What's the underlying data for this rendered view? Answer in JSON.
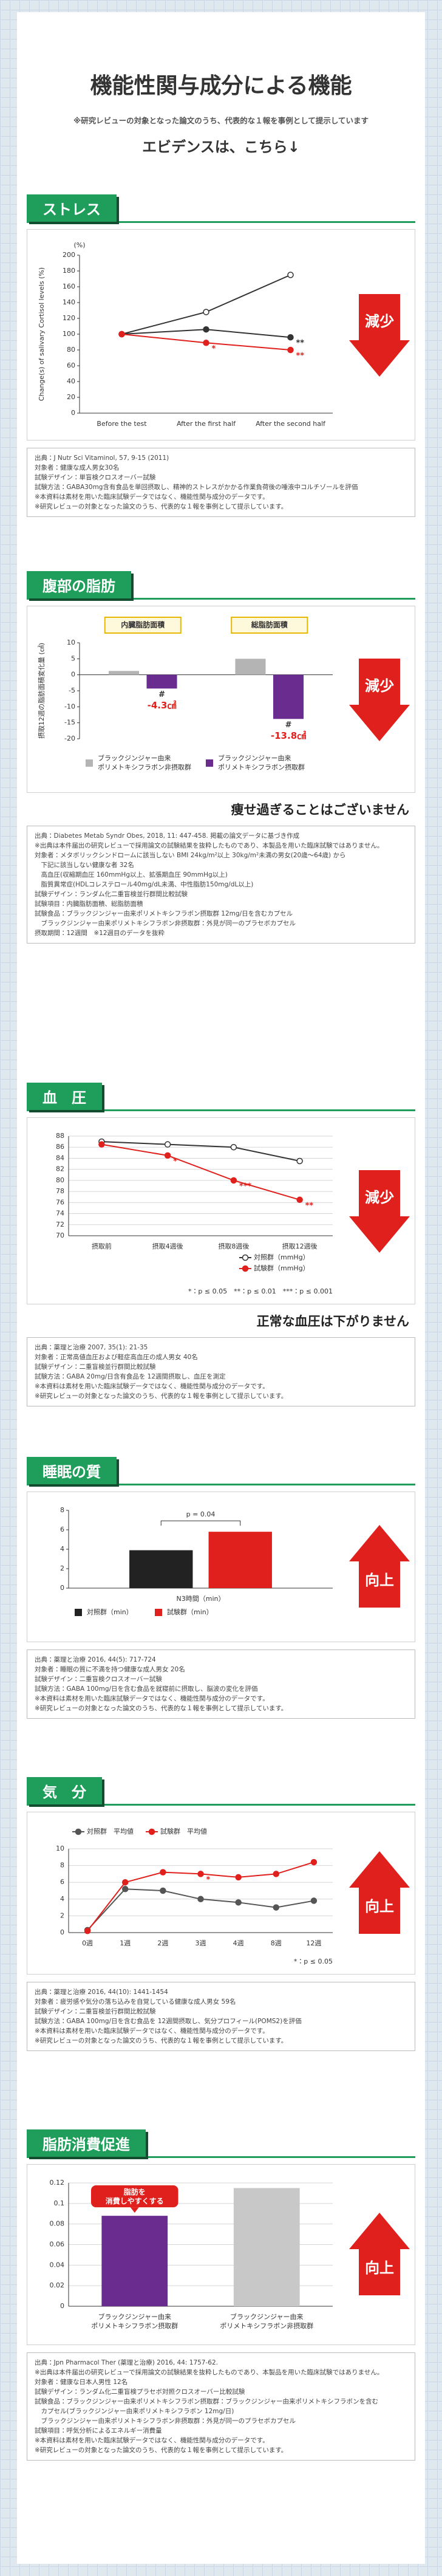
{
  "header": {
    "title": "機能性関与成分による機能",
    "note": "※研究レビューの対象となった論文のうち、代表的な１報を事例として提示しています",
    "lead": "エビデンスは、こちら↓"
  },
  "sections": [
    {
      "title": "ストレス",
      "badge": "減少",
      "arrow": "down",
      "notes": [
        "出典：J Nutr Sci Vitaminol, 57, 9-15 (2011)",
        "対象者：健康な成人男女30名",
        "試験デザイン：単盲検クロスオーバー試験",
        "試験方法：GABA30mg含有食品を単回摂取し、精神的ストレスがかかる作業負荷後の唾液中コルチゾールを評価",
        "※本資料は素材を用いた臨床試験データではなく、機能性関与成分のデータです。",
        "※研究レビューの対象となった論文のうち、代表的な１報を事例として提示しています。"
      ]
    },
    {
      "title": "腹部の脂肪",
      "badge": "減少",
      "arrow": "down",
      "caption": "痩せ過ぎることはございません",
      "notes": [
        "出典：Diabetes Metab Syndr Obes, 2018, 11: 447-458. 掲載の論文データに基づき作成",
        "※出典は本件届出の研究レビューで採用論文の試験結果を抜粋したものであり、本製品を用いた臨床試験ではありません。",
        "対象者：メタボリックシンドロームに該当しない BMI 24kg/m²以上 30kg/m²未満の男女(20歳～64歳) から",
        "　下記に該当しない健康な者 32名",
        "　高血圧(収縮期血圧 160mmHg以上、拡張期血圧 90mmHg以上)",
        "　脂質異常症(HDLコレステロール40mg/dL未満、中性脂肪150mg/dL以上)",
        "試験デザイン：ランダム化二重盲検並行群間比較試験",
        "試験項目：内臓脂肪面積、総脂肪面積",
        "試験食品：ブラックジンジャー由来ポリメトキシフラボン摂取群 12mg/日を含むカプセル",
        "　ブラックジンジャー由来ポリメトキシフラボン非摂取群：外見が同一のプラセボカプセル",
        "摂取期間：12週間　※12週目のデータを抜粋"
      ]
    },
    {
      "title": "血　圧",
      "badge": "減少",
      "arrow": "down",
      "caption": "正常な血圧は下がりません",
      "notes": [
        "出典：薬理と治療 2007, 35(1): 21-35",
        "対象者：正常高値血圧および軽症高血圧の成人男女 40名",
        "試験デザイン：二重盲検並行群間比較試験",
        "試験方法：GABA 20mg/日含有食品を 12週間摂取し、血圧を測定",
        "※本資料は素材を用いた臨床試験データではなく、機能性関与成分のデータです。",
        "※研究レビューの対象となった論文のうち、代表的な１報を事例として提示しています。"
      ]
    },
    {
      "title": "睡眠の質",
      "badge": "向上",
      "arrow": "up",
      "notes": [
        "出典：薬理と治療 2016, 44(5): 717-724",
        "対象者：睡眠の質に不満を持つ健康な成人男女 20名",
        "試験デザイン：二重盲検クロスオーバー試験",
        "試験方法：GABA 100mg/日を含む食品を就寝前に摂取し、脳波の変化を評価",
        "※本資料は素材を用いた臨床試験データではなく、機能性関与成分のデータです。",
        "※研究レビューの対象となった論文のうち、代表的な１報を事例として提示しています。"
      ]
    },
    {
      "title": "気　分",
      "badge": "向上",
      "arrow": "up",
      "notes": [
        "出典：薬理と治療 2016, 44(10): 1441-1454",
        "対象者：疲労感や気分の落ち込みを自覚している健康な成人男女 59名",
        "試験デザイン：二重盲検並行群間比較試験",
        "試験方法：GABA 100mg/日を含む食品を 12週間摂取し、気分プロフィール(POMS2)を評価",
        "※本資料は素材を用いた臨床試験データではなく、機能性関与成分のデータです。",
        "※研究レビューの対象となった論文のうち、代表的な１報を事例として提示しています。"
      ]
    },
    {
      "title": "脂肪消費促進",
      "badge": "向上",
      "arrow": "up",
      "notes": [
        "出典：Jpn Pharmacol Ther (薬理と治療) 2016, 44: 1757-62.",
        "※出典は本件届出の研究レビューで採用論文の試験結果を抜粋したものであり、本製品を用いた臨床試験ではありません。",
        "対象者：健康な日本人男性 12名",
        "試験デザイン：ランダム化二重盲検プラセボ対照クロスオーバー比較試験",
        "試験食品：ブラックジンジャー由来ポリメトキシフラボン摂取群：ブラックジンジャー由来ポリメトキシフラボンを含む",
        "　カプセル(ブラックジンジャー由来ポリメトキシフラボン 12mg/日)",
        "　ブラックジンジャー由来ポリメトキシフラボン非摂取群：外見が同一のプラセボカプセル",
        "試験項目：呼気分析によるエネルギー消費量",
        "※本資料は素材を用いた臨床試験データではなく、機能性関与成分のデータです。",
        "※研究レビューの対象となった論文のうち、代表的な１報を事例として提示しています。"
      ]
    }
  ],
  "chart_data": [
    {
      "type": "line",
      "ylabel": "Change(s) of salivary Cortisol levels (%)",
      "yunit": "(%)",
      "categories": [
        "Before the test",
        "After the first half",
        "After the second half"
      ],
      "series": [
        {
          "color": "#333333",
          "marker": "open-circle",
          "values": [
            100,
            128,
            175
          ]
        },
        {
          "color": "#333333",
          "marker": "circle",
          "values": [
            100,
            106,
            96
          ],
          "annotations": [
            null,
            null,
            "**"
          ]
        },
        {
          "color": "#e0201c",
          "marker": "circle",
          "values": [
            100,
            89,
            80
          ],
          "annotations": [
            null,
            "*",
            "**"
          ]
        }
      ],
      "ylim": [
        0,
        200
      ],
      "yticks": [
        0,
        20,
        40,
        60,
        80,
        100,
        120,
        140,
        160,
        180,
        200
      ],
      "grid": false
    },
    {
      "type": "bar",
      "ylabel": "摂取12週の脂肪面積変化量 (㎠)",
      "categories": [
        "内臓脂肪面積",
        "総脂肪面積"
      ],
      "category_box_color": "#e8b800",
      "series": [
        {
          "name": [
            "ブラックジンジャー由来",
            "ポリメトキシフラボン非摂取群"
          ],
          "color": "#b4b4b4",
          "values": [
            1.2,
            5.0
          ]
        },
        {
          "name": [
            "ブラックジンジャー由来",
            "ポリメトキシフラボン摂取群"
          ],
          "color": "#6a2c8e",
          "values": [
            -4.3,
            -13.8
          ],
          "value_labels": [
            "-4.3㎠",
            "-13.8㎠"
          ],
          "annotations": [
            "#",
            "#"
          ]
        }
      ],
      "ylim": [
        -20,
        10
      ],
      "yticks": [
        -20,
        -15,
        -10,
        -5,
        0,
        5,
        10
      ],
      "grid": false,
      "legend": "bottom"
    },
    {
      "type": "line",
      "categories": [
        "摂取前",
        "摂取4週後",
        "摂取8週後",
        "摂取12週後"
      ],
      "series": [
        {
          "name": "対照群（mmHg）",
          "color": "#333333",
          "marker": "open-circle",
          "values": [
            87,
            86.5,
            86,
            83.5
          ]
        },
        {
          "name": "試験群（mmHg）",
          "color": "#e0201c",
          "marker": "circle",
          "values": [
            86.5,
            84.5,
            80,
            76.5
          ],
          "annotations": [
            null,
            "*",
            "***",
            "**"
          ]
        }
      ],
      "ylim": [
        70,
        88
      ],
      "yticks": [
        70,
        72,
        74,
        76,
        78,
        80,
        82,
        84,
        86,
        88
      ],
      "grid": true,
      "legend": "bottom-right",
      "footnote": "*：p ≤ 0.05　**：p ≤ 0.01　***：p ≤ 0.001"
    },
    {
      "type": "bar",
      "categories": [
        "N3時間（min）"
      ],
      "series": [
        {
          "name": "対照群（min）",
          "color": "#222222",
          "values": [
            3.9
          ]
        },
        {
          "name": "試験群（min）",
          "color": "#e0201c",
          "values": [
            5.8
          ]
        }
      ],
      "annotation": "p = 0.04",
      "ylim": [
        0,
        8
      ],
      "yticks": [
        0,
        2,
        4,
        6,
        8
      ],
      "grid": false,
      "legend": "bottom"
    },
    {
      "type": "line",
      "categories": [
        "0週",
        "1週",
        "2週",
        "3週",
        "4週",
        "8週",
        "12週"
      ],
      "series": [
        {
          "name": "対照群　平均値",
          "color": "#555555",
          "marker": "circle",
          "values": [
            0.3,
            5.2,
            5.0,
            4.0,
            3.6,
            3.0,
            3.8
          ]
        },
        {
          "name": "試験群　平均値",
          "color": "#e0201c",
          "marker": "circle",
          "values": [
            0.2,
            6.0,
            7.2,
            7.0,
            6.6,
            7.0,
            8.4
          ],
          "annotations": [
            null,
            null,
            null,
            "*",
            null,
            null,
            null
          ]
        }
      ],
      "ylim": [
        0,
        10
      ],
      "yticks": [
        0,
        2,
        4,
        6,
        8,
        10
      ],
      "grid": true,
      "legend": "top",
      "footnote": "*：p ≤ 0.05"
    },
    {
      "type": "bar",
      "categories": [
        [
          "ブラックジンジャー由来",
          "ポリメトキシフラボン摂取群"
        ],
        [
          "ブラックジンジャー由来",
          "ポリメトキシフラボン非摂取群"
        ]
      ],
      "values": [
        0.088,
        0.115
      ],
      "colors": [
        "#6a2c8e",
        "#c8c8c8"
      ],
      "callout": [
        "脂肪を",
        "消費しやすくする"
      ],
      "ylim": [
        0,
        0.12
      ],
      "yticks": [
        0,
        0.02,
        0.04,
        0.06,
        0.08,
        0.1,
        0.12
      ],
      "grid": true
    }
  ]
}
